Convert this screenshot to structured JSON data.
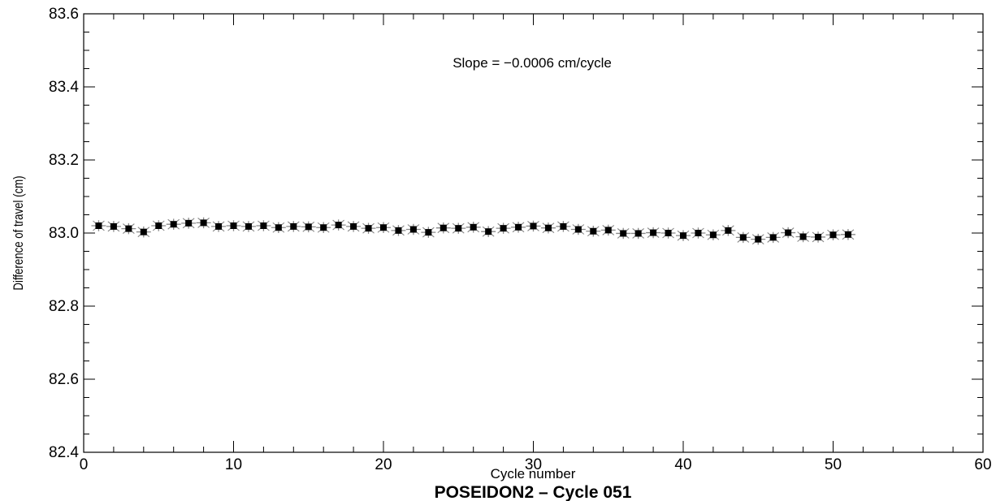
{
  "chart_data": {
    "type": "scatter",
    "title": "POSEIDON2 – Cycle 051",
    "xlabel": "Cycle number",
    "ylabel": "Difference of travel  (cm)",
    "annotation": "Slope = −0.0006 cm/cycle",
    "xlim": [
      0,
      60
    ],
    "ylim": [
      82.4,
      83.6
    ],
    "x_ticks": [
      0,
      10,
      20,
      30,
      40,
      50,
      60
    ],
    "x_tick_labels": [
      "0",
      "10",
      "20",
      "30",
      "40",
      "50",
      "60"
    ],
    "y_ticks": [
      82.4,
      82.6,
      82.8,
      83.0,
      83.2,
      83.4,
      83.6
    ],
    "y_tick_labels": [
      "82.4",
      "82.6",
      "82.8",
      "83.0",
      "83.2",
      "83.4",
      "83.6"
    ],
    "grid": false,
    "marker": "filled square with star-shaped error bars",
    "colors": {
      "points": "#000000",
      "error_bars": "#888888",
      "axes": "#000000"
    },
    "x": [
      1,
      2,
      3,
      4,
      5,
      6,
      7,
      8,
      9,
      10,
      11,
      12,
      13,
      14,
      15,
      16,
      17,
      18,
      19,
      20,
      21,
      22,
      23,
      24,
      25,
      26,
      27,
      28,
      29,
      30,
      31,
      32,
      33,
      34,
      35,
      36,
      37,
      38,
      39,
      40,
      41,
      42,
      43,
      44,
      45,
      46,
      47,
      48,
      49,
      50,
      51
    ],
    "y": [
      83.02,
      83.018,
      83.012,
      83.003,
      83.02,
      83.024,
      83.027,
      83.028,
      83.018,
      83.02,
      83.018,
      83.02,
      83.015,
      83.018,
      83.017,
      83.015,
      83.022,
      83.018,
      83.013,
      83.015,
      83.007,
      83.01,
      83.002,
      83.014,
      83.013,
      83.016,
      83.004,
      83.013,
      83.016,
      83.019,
      83.014,
      83.018,
      83.01,
      83.005,
      83.008,
      82.999,
      82.999,
      83.001,
      83.0,
      82.993,
      83.0,
      82.995,
      83.007,
      82.988,
      82.983,
      82.988,
      83.001,
      82.99,
      82.989,
      82.995,
      82.996
    ],
    "error": 0.015
  }
}
